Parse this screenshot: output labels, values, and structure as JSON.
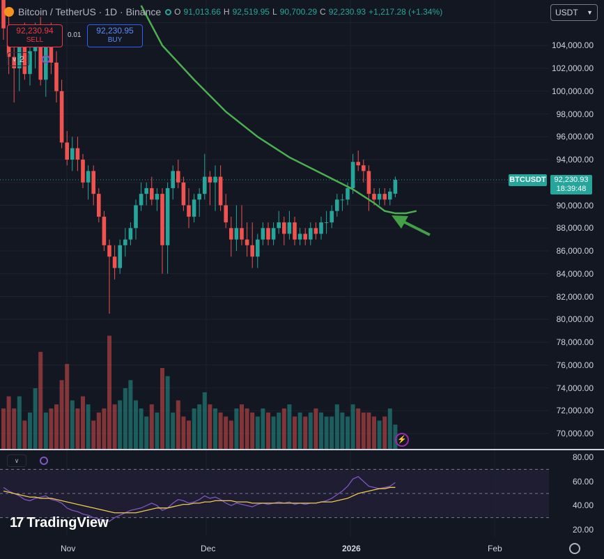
{
  "header": {
    "symbol": "Bitcoin / TetherUS · 1D · Binance",
    "ohlc": {
      "o_label": "O",
      "o": "91,013.66",
      "h_label": "H",
      "h": "92,519.95",
      "l_label": "L",
      "l": "90,700.29",
      "c_label": "C",
      "c": "92,230.93",
      "change": "+1,217.28 (+1.34%)"
    },
    "sell_price": "92,230.94",
    "sell_label": "SELL",
    "buy_price": "92,230.95",
    "buy_label": "BUY",
    "spread": "0.01",
    "indicator_count": "2"
  },
  "currency_select": "USDT",
  "price_axis": {
    "labels": [
      "104,000.00",
      "102,000.00",
      "100,000.00",
      "98,000.00",
      "96,000.00",
      "94,000.00",
      "90,000.00",
      "88,000.00",
      "86,000.00",
      "84,000.00",
      "82,000.00",
      "80,000.00",
      "78,000.00",
      "76,000.00",
      "74,000.00",
      "72,000.00",
      "70,000.00"
    ],
    "last_symbol": "BTCUSDT",
    "last_price": "92,230.93",
    "countdown": "18:39:48"
  },
  "rsi_axis": {
    "labels": [
      "80.00",
      "60.00",
      "40.00",
      "20.00"
    ]
  },
  "time_axis": {
    "labels": [
      "Nov",
      "Dec",
      "2026",
      "Feb"
    ]
  },
  "branding": "TradingView",
  "icons": {
    "settings": "settings-icon",
    "lightning": "lightning-icon",
    "sync": "sync-icon",
    "chevron": "chevron-down-icon"
  },
  "colors": {
    "up": "#26a69a",
    "down": "#ef5350",
    "ma": "#4caf50",
    "rsi": "#7e57c2",
    "rsi_ma": "#f0c94e",
    "arrow": "#43a047"
  },
  "chart_data": [
    {
      "type": "candlestick",
      "title": "Bitcoin / TetherUS · 1D · Binance",
      "ylim": [
        69000,
        106500
      ],
      "candles_ohlc": [
        [
          108000,
          110000,
          104500,
          105500
        ],
        [
          105500,
          106500,
          101500,
          103000
        ],
        [
          103000,
          104500,
          99000,
          102000
        ],
        [
          102000,
          105000,
          100000,
          104000
        ],
        [
          104000,
          106000,
          101000,
          101500
        ],
        [
          101500,
          104500,
          100500,
          103500
        ],
        [
          103500,
          106000,
          102000,
          105500
        ],
        [
          105500,
          106500,
          100500,
          101000
        ],
        [
          101000,
          105000,
          99500,
          104500
        ],
        [
          104500,
          106000,
          101500,
          102500
        ],
        [
          102500,
          103500,
          99000,
          100000
        ],
        [
          100000,
          101000,
          95000,
          95500
        ],
        [
          95500,
          96500,
          93500,
          94000
        ],
        [
          94000,
          96000,
          93000,
          95000
        ],
        [
          95000,
          96000,
          93000,
          94000
        ],
        [
          94000,
          94500,
          91500,
          92000
        ],
        [
          92000,
          93500,
          90500,
          93000
        ],
        [
          93000,
          93500,
          90000,
          91000
        ],
        [
          91000,
          91500,
          88500,
          89000
        ],
        [
          89000,
          89500,
          86000,
          86500
        ],
        [
          86500,
          87000,
          80500,
          85500
        ],
        [
          85500,
          86500,
          83500,
          84500
        ],
        [
          84500,
          87000,
          84000,
          86500
        ],
        [
          86500,
          88000,
          85500,
          87000
        ],
        [
          87000,
          88500,
          86500,
          88000
        ],
        [
          88000,
          90500,
          87000,
          90000
        ],
        [
          90000,
          92000,
          89500,
          91000
        ],
        [
          91000,
          92000,
          90000,
          91500
        ],
        [
          91500,
          92500,
          90000,
          90500
        ],
        [
          90500,
          91500,
          89500,
          91000
        ],
        [
          91000,
          91500,
          84000,
          86500
        ],
        [
          86500,
          92000,
          84000,
          91500
        ],
        [
          91500,
          93500,
          90500,
          93000
        ],
        [
          93000,
          94000,
          91500,
          92000
        ],
        [
          92000,
          92500,
          89500,
          90000
        ],
        [
          90000,
          91500,
          88000,
          89000
        ],
        [
          89000,
          91000,
          88500,
          90500
        ],
        [
          90500,
          91500,
          89000,
          91000
        ],
        [
          91000,
          94500,
          90500,
          92500
        ],
        [
          92500,
          93000,
          90000,
          92000
        ],
        [
          92000,
          93500,
          89500,
          92500
        ],
        [
          92500,
          93500,
          89500,
          90000
        ],
        [
          90000,
          91000,
          88000,
          88500
        ],
        [
          88000,
          89000,
          85500,
          87000
        ],
        [
          87000,
          90000,
          86000,
          88000
        ],
        [
          88000,
          90000,
          86500,
          87000
        ],
        [
          87000,
          88500,
          85500,
          86500
        ],
        [
          86500,
          88500,
          84500,
          85500
        ],
        [
          85500,
          87500,
          84500,
          87000
        ],
        [
          87000,
          88500,
          86500,
          88000
        ],
        [
          88000,
          88500,
          86500,
          87000
        ],
        [
          87000,
          88500,
          86500,
          88000
        ],
        [
          88000,
          89500,
          87500,
          88500
        ],
        [
          88500,
          89000,
          86500,
          87500
        ],
        [
          87500,
          89500,
          87000,
          88500
        ],
        [
          88500,
          89000,
          86500,
          87000
        ],
        [
          87000,
          88000,
          86500,
          87500
        ],
        [
          87500,
          88000,
          86500,
          87000
        ],
        [
          87000,
          88500,
          86500,
          88000
        ],
        [
          88000,
          88500,
          87000,
          87500
        ],
        [
          87500,
          89000,
          87000,
          88500
        ],
        [
          88500,
          89500,
          87500,
          88500
        ],
        [
          88500,
          90000,
          88000,
          89500
        ],
        [
          89500,
          91000,
          89000,
          90500
        ],
        [
          90500,
          91000,
          89500,
          90500
        ],
        [
          90500,
          92000,
          90000,
          91500
        ],
        [
          91500,
          94500,
          91000,
          93800
        ],
        [
          93800,
          94800,
          93000,
          93500
        ],
        [
          93500,
          94000,
          92000,
          93000
        ],
        [
          93000,
          93500,
          89500,
          91000
        ],
        [
          91000,
          91500,
          90000,
          90500
        ],
        [
          90500,
          91500,
          90000,
          91000
        ],
        [
          91000,
          91500,
          90000,
          90500
        ],
        [
          90500,
          91500,
          90000,
          91200
        ],
        [
          91013.66,
          92519.95,
          90700.29,
          92230.93
        ]
      ],
      "volume_relative": [
        0.2,
        0.26,
        0.2,
        0.26,
        0.14,
        0.18,
        0.3,
        0.48,
        0.18,
        0.2,
        0.22,
        0.34,
        0.42,
        0.24,
        0.2,
        0.26,
        0.22,
        0.14,
        0.18,
        0.2,
        0.56,
        0.22,
        0.24,
        0.3,
        0.34,
        0.24,
        0.2,
        0.16,
        0.22,
        0.18,
        0.4,
        0.36,
        0.18,
        0.24,
        0.16,
        0.14,
        0.2,
        0.22,
        0.28,
        0.22,
        0.2,
        0.18,
        0.16,
        0.14,
        0.2,
        0.22,
        0.2,
        0.18,
        0.16,
        0.2,
        0.18,
        0.16,
        0.18,
        0.2,
        0.22,
        0.16,
        0.18,
        0.16,
        0.18,
        0.2,
        0.18,
        0.16,
        0.16,
        0.22,
        0.18,
        0.16,
        0.22,
        0.2,
        0.18,
        0.18,
        0.16,
        0.14,
        0.16,
        0.2,
        0.12
      ],
      "moving_average": [
        [
          26,
          107500
        ],
        [
          30,
          104000
        ],
        [
          36,
          101000
        ],
        [
          42,
          98200
        ],
        [
          48,
          96000
        ],
        [
          54,
          94200
        ],
        [
          60,
          92800
        ],
        [
          66,
          91400
        ],
        [
          70,
          90200
        ],
        [
          72,
          89500
        ],
        [
          74,
          89300
        ],
        [
          76,
          89300
        ],
        [
          78,
          89500
        ]
      ],
      "annotation": "arrow-pointing-to-moving-average"
    },
    {
      "type": "line",
      "ylim": [
        20,
        80
      ],
      "bands": [
        30,
        50,
        70
      ],
      "series": [
        {
          "values": [
            55,
            52,
            50,
            48,
            45,
            44,
            46,
            47,
            48,
            45,
            44,
            42,
            38,
            36,
            35,
            33,
            32,
            30,
            29,
            28,
            27,
            30,
            32,
            34,
            36,
            37,
            38,
            40,
            42,
            40,
            36,
            38,
            42,
            45,
            44,
            42,
            43,
            45,
            48,
            46,
            47,
            45,
            42,
            40,
            42,
            41,
            40,
            39,
            41,
            42,
            41,
            42,
            43,
            42,
            43,
            41,
            42,
            41,
            42,
            42,
            43,
            44,
            46,
            49,
            52,
            56,
            62,
            64,
            60,
            56,
            55,
            54,
            55,
            56,
            59
          ]
        },
        {
          "values": [
            52,
            51,
            50,
            49,
            48,
            47,
            47,
            46,
            46,
            46,
            45,
            44,
            43,
            42,
            41,
            40,
            39,
            38,
            37,
            36,
            35,
            34,
            34,
            34,
            34,
            34,
            35,
            36,
            37,
            38,
            38,
            38,
            39,
            40,
            41,
            41,
            42,
            42,
            43,
            43,
            44,
            44,
            44,
            44,
            43,
            43,
            43,
            42,
            42,
            42,
            42,
            42,
            42,
            42,
            42,
            42,
            42,
            42,
            42,
            42,
            43,
            43,
            43,
            44,
            45,
            46,
            48,
            50,
            51,
            52,
            53,
            54,
            54,
            55,
            55
          ]
        }
      ]
    }
  ]
}
